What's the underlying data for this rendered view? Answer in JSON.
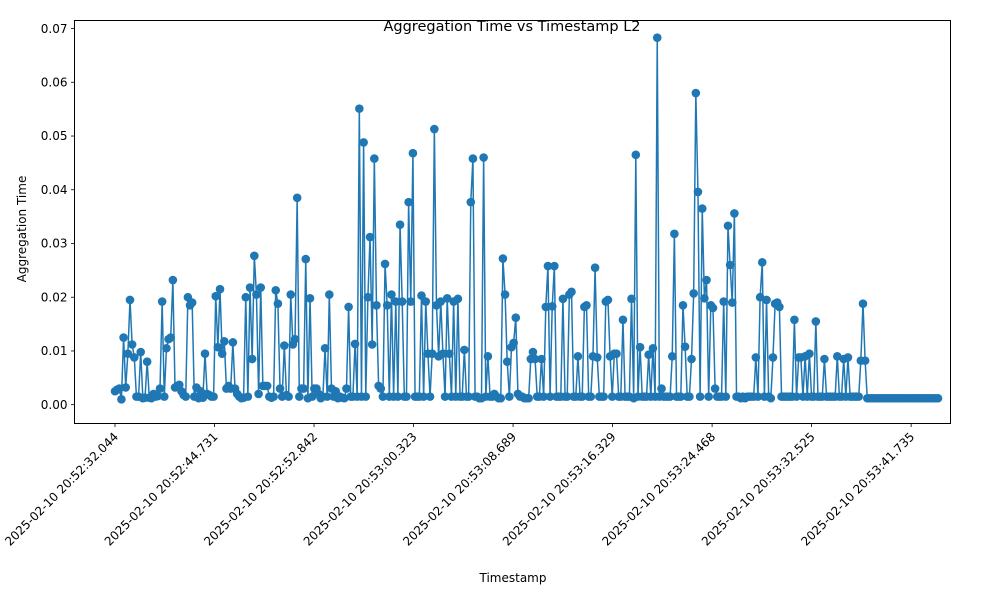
{
  "chart_data": {
    "type": "line",
    "title": "Aggregation Time vs Timestamp L2",
    "xlabel": "Timestamp",
    "ylabel": "Aggregation Time",
    "ylim": [
      -0.0035,
      0.0715
    ],
    "x_tick_labels": [
      "2025-02-10 20:52:32.044",
      "2025-02-10 20:52:44.731",
      "2025-02-10 20:52:52.842",
      "2025-02-10 20:53:00.323",
      "2025-02-10 20:53:08.689",
      "2025-02-10 20:53:16.329",
      "2025-02-10 20:53:24.468",
      "2025-02-10 20:53:32.525",
      "2025-02-10 20:53:41.735"
    ],
    "y_ticks": [
      0.0,
      0.01,
      0.02,
      0.03,
      0.04,
      0.05,
      0.06,
      0.07
    ],
    "y_tick_labels": [
      "0.00",
      "0.01",
      "0.02",
      "0.03",
      "0.04",
      "0.05",
      "0.06",
      "0.07"
    ],
    "grid": false,
    "marker": "circle",
    "colors": {
      "series": "#1f77b4"
    },
    "series": [
      {
        "values": [
          0.0025,
          0.0028,
          0.003,
          0.001,
          0.0125,
          0.0032,
          0.0095,
          0.0195,
          0.0112,
          0.0088,
          0.0015,
          0.0015,
          0.0098,
          0.0012,
          0.0013,
          0.008,
          0.0013,
          0.0012,
          0.002,
          0.0015,
          0.0016,
          0.003,
          0.0192,
          0.0015,
          0.0105,
          0.0122,
          0.0125,
          0.0232,
          0.0032,
          0.0035,
          0.0037,
          0.0025,
          0.0018,
          0.0015,
          0.02,
          0.0185,
          0.019,
          0.0015,
          0.0032,
          0.0012,
          0.0025,
          0.0013,
          0.0095,
          0.002,
          0.0018,
          0.0015,
          0.0015,
          0.0202,
          0.0107,
          0.0215,
          0.0095,
          0.0118,
          0.003,
          0.0035,
          0.003,
          0.0116,
          0.003,
          0.002,
          0.0015,
          0.0012,
          0.0013,
          0.02,
          0.0015,
          0.0218,
          0.0085,
          0.0277,
          0.0205,
          0.002,
          0.0218,
          0.0035,
          0.0035,
          0.0035,
          0.0015,
          0.0013,
          0.0015,
          0.0213,
          0.0188,
          0.003,
          0.0015,
          0.011,
          0.0018,
          0.0015,
          0.0205,
          0.0112,
          0.0122,
          0.0385,
          0.0015,
          0.003,
          0.003,
          0.0271,
          0.0012,
          0.0198,
          0.0015,
          0.003,
          0.003,
          0.002,
          0.0012,
          0.0015,
          0.0105,
          0.0015,
          0.0205,
          0.003,
          0.0015,
          0.0025,
          0.0012,
          0.0015,
          0.0013,
          0.0012,
          0.003,
          0.0182,
          0.0015,
          0.0015,
          0.0113,
          0.0015,
          0.0551,
          0.0015,
          0.0488,
          0.0015,
          0.02,
          0.0312,
          0.0112,
          0.0458,
          0.0185,
          0.0035,
          0.003,
          0.0015,
          0.0262,
          0.0185,
          0.0015,
          0.0205,
          0.0015,
          0.0192,
          0.0015,
          0.0335,
          0.0192,
          0.0015,
          0.0015,
          0.0377,
          0.0192,
          0.0468,
          0.0015,
          0.0015,
          0.0015,
          0.0203,
          0.0015,
          0.0192,
          0.0095,
          0.0015,
          0.0095,
          0.0513,
          0.0185,
          0.009,
          0.0192,
          0.0095,
          0.0015,
          0.0198,
          0.0095,
          0.0015,
          0.0192,
          0.0015,
          0.0197,
          0.0015,
          0.0015,
          0.0102,
          0.0015,
          0.0015,
          0.0377,
          0.0458,
          0.0015,
          0.0015,
          0.0012,
          0.0012,
          0.046,
          0.0015,
          0.009,
          0.0015,
          0.0015,
          0.002,
          0.0015,
          0.0012,
          0.0012,
          0.0272,
          0.0205,
          0.008,
          0.0015,
          0.0107,
          0.0115,
          0.0162,
          0.002,
          0.0015,
          0.0015,
          0.0012,
          0.0012,
          0.0012,
          0.0085,
          0.0098,
          0.0085,
          0.0015,
          0.0015,
          0.0085,
          0.0015,
          0.0182,
          0.0258,
          0.0015,
          0.0183,
          0.0258,
          0.0015,
          0.0015,
          0.0015,
          0.0197,
          0.0015,
          0.0015,
          0.0205,
          0.021,
          0.0015,
          0.0015,
          0.009,
          0.0015,
          0.0015,
          0.0182,
          0.0185,
          0.0015,
          0.0015,
          0.009,
          0.0255,
          0.0088,
          0.0015,
          0.0015,
          0.0015,
          0.0192,
          0.0195,
          0.009,
          0.0015,
          0.0095,
          0.0095,
          0.0015,
          0.0015,
          0.0158,
          0.0015,
          0.0015,
          0.0015,
          0.0197,
          0.0012,
          0.0465,
          0.0015,
          0.0107,
          0.0015,
          0.0015,
          0.0015,
          0.0093,
          0.0015,
          0.0105,
          0.0015,
          0.0683,
          0.0015,
          0.003,
          0.0015,
          0.0015,
          0.0015,
          0.0015,
          0.009,
          0.0318,
          0.0015,
          0.0015,
          0.0015,
          0.0185,
          0.0108,
          0.0015,
          0.0015,
          0.0085,
          0.0207,
          0.058,
          0.0396,
          0.0015,
          0.0365,
          0.0198,
          0.0232,
          0.0015,
          0.0185,
          0.018,
          0.003,
          0.0015,
          0.0015,
          0.0015,
          0.0192,
          0.0015,
          0.0333,
          0.026,
          0.019,
          0.0356,
          0.0015,
          0.0015,
          0.0012,
          0.0015,
          0.0012,
          0.0015,
          0.0015,
          0.0015,
          0.0015,
          0.0088,
          0.0015,
          0.02,
          0.0265,
          0.0015,
          0.0195,
          0.0015,
          0.0012,
          0.0088,
          0.0188,
          0.019,
          0.0182,
          0.0015,
          0.0015,
          0.0015,
          0.0015,
          0.0015,
          0.0015,
          0.0158,
          0.0015,
          0.0088,
          0.0088,
          0.0015,
          0.009,
          0.0015,
          0.0095,
          0.0015,
          0.0015,
          0.0155,
          0.0015,
          0.0015,
          0.0015,
          0.0085,
          0.0015,
          0.0015,
          0.0015,
          0.0015,
          0.0015,
          0.009,
          0.0015,
          0.0015,
          0.0085,
          0.0015,
          0.0088,
          0.0015,
          0.0015,
          0.0015,
          0.0015,
          0.0015,
          0.0082,
          0.0188,
          0.0082,
          0.0012,
          0.0012,
          0.0012,
          0.0012,
          0.0012,
          0.0012,
          0.0012,
          0.0012,
          0.0012,
          0.0012,
          0.0012,
          0.0012,
          0.0012,
          0.0012,
          0.0012,
          0.0012,
          0.0012,
          0.0012,
          0.0012,
          0.0012,
          0.0012,
          0.0012,
          0.0012,
          0.0012,
          0.0012,
          0.0012,
          0.0012,
          0.0012,
          0.0012,
          0.0012,
          0.0012,
          0.0012,
          0.0012,
          0.0012
        ]
      }
    ]
  }
}
